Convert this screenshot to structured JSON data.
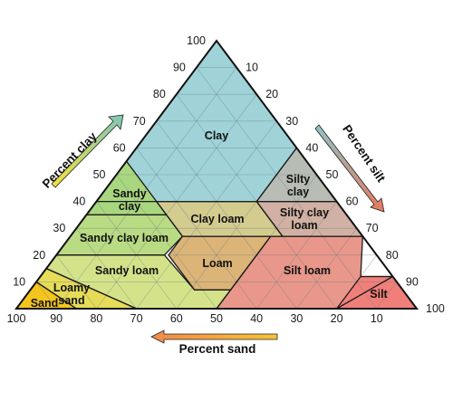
{
  "diagram": {
    "clay_axis_title": "Percent clay",
    "silt_axis_title": "Percent silt",
    "sand_axis_title": "Percent sand",
    "clay_ticks": [
      "10",
      "20",
      "30",
      "40",
      "50",
      "60",
      "70",
      "80",
      "90",
      "100"
    ],
    "silt_ticks": [
      "10",
      "20",
      "30",
      "40",
      "50",
      "60",
      "70",
      "80",
      "90",
      "100"
    ],
    "sand_ticks": [
      "100",
      "90",
      "80",
      "70",
      "60",
      "50",
      "40",
      "30",
      "20",
      "10"
    ],
    "regions": [
      {
        "name": "Clay",
        "lines": [
          "Clay"
        ],
        "color": "#9fd3d8"
      },
      {
        "name": "Silty clay",
        "lines": [
          "Silty",
          "clay"
        ],
        "color": "#b7bdb5"
      },
      {
        "name": "Sandy clay",
        "lines": [
          "Sandy",
          "clay"
        ],
        "color": "#a9d77f"
      },
      {
        "name": "Clay loam",
        "lines": [
          "Clay loam"
        ],
        "color": "#d4cc8f"
      },
      {
        "name": "Silty clay loam",
        "lines": [
          "Silty clay",
          "loam"
        ],
        "color": "#d1b1a3"
      },
      {
        "name": "Sandy clay loam",
        "lines": [
          "Sandy clay loam"
        ],
        "color": "#b8db83"
      },
      {
        "name": "Loam",
        "lines": [
          "Loam"
        ],
        "color": "#dcb478"
      },
      {
        "name": "Silt loam",
        "lines": [
          "Silt loam"
        ],
        "color": "#e8978a"
      },
      {
        "name": "Sandy loam",
        "lines": [
          "Sandy loam"
        ],
        "color": "#d4e389"
      },
      {
        "name": "Loamy sand",
        "lines": [
          "Loamy",
          "sand"
        ],
        "color": "#e6dc58"
      },
      {
        "name": "Sand",
        "lines": [
          "Sand"
        ],
        "color": "#f4c51d"
      },
      {
        "name": "Silt",
        "lines": [
          "Silt"
        ],
        "color": "#f07f7a"
      }
    ],
    "colors": {
      "clay_arrow_start": "#f3e23a",
      "clay_arrow_end": "#7fc6b8",
      "silt_arrow_start": "#8fc4c4",
      "silt_arrow_end": "#e8785e",
      "sand_arrow_start": "#f6c335",
      "sand_arrow_end": "#f08a4b"
    }
  }
}
